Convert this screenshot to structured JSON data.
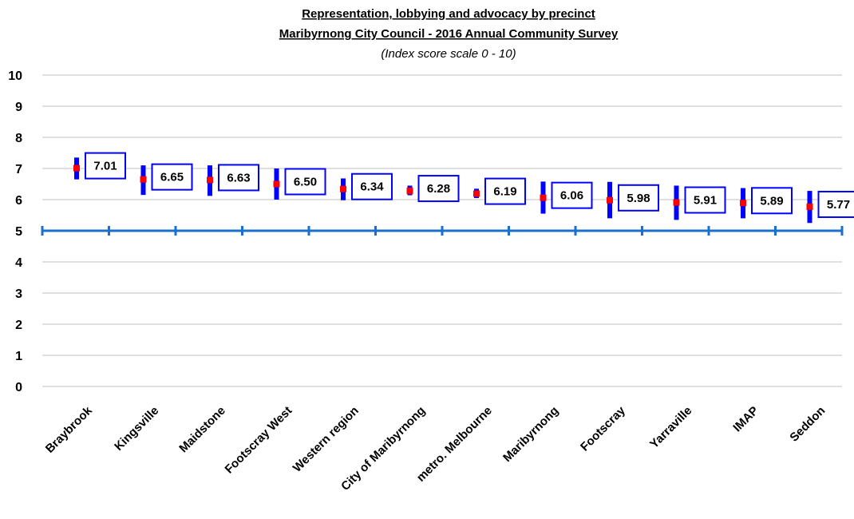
{
  "chart_data": {
    "type": "scatter",
    "title_line1": "Representation, lobbying and advocacy by precinct",
    "title_line2": "Maribyrnong City Council - 2016 Annual Community Survey",
    "subtitle": "(Index score scale 0 - 10)",
    "ylim": [
      0,
      10
    ],
    "yticks": [
      0,
      1,
      2,
      3,
      4,
      5,
      6,
      7,
      8,
      9,
      10
    ],
    "grid": true,
    "baseline": 5,
    "categories": [
      "Braybrook",
      "Kingsville",
      "Maidstone",
      "Footscray West",
      "Western region",
      "City of Maribyrnong",
      "metro. Melbourne",
      "Maribyrnong",
      "Footscray",
      "Yarraville",
      "IMAP",
      "Seddon"
    ],
    "values": [
      7.01,
      6.65,
      6.63,
      6.5,
      6.34,
      6.28,
      6.19,
      6.06,
      5.98,
      5.91,
      5.89,
      5.77
    ],
    "value_labels": [
      "7.01",
      "6.65",
      "6.63",
      "6.50",
      "6.34",
      "6.28",
      "6.19",
      "6.06",
      "5.98",
      "5.91",
      "5.89",
      "5.77"
    ],
    "ci_low": [
      6.65,
      6.15,
      6.12,
      6.0,
      5.98,
      6.14,
      6.05,
      5.55,
      5.4,
      5.35,
      5.4,
      5.25
    ],
    "ci_high": [
      7.35,
      7.1,
      7.1,
      7.0,
      6.68,
      6.45,
      6.35,
      6.58,
      6.57,
      6.45,
      6.37,
      6.28
    ],
    "colors": {
      "error_bar": "#0000ff",
      "point": "#ff0000",
      "label_box": "#0000ff",
      "baseline": "#1a6fcf",
      "grid": "#bfbfbf"
    }
  }
}
